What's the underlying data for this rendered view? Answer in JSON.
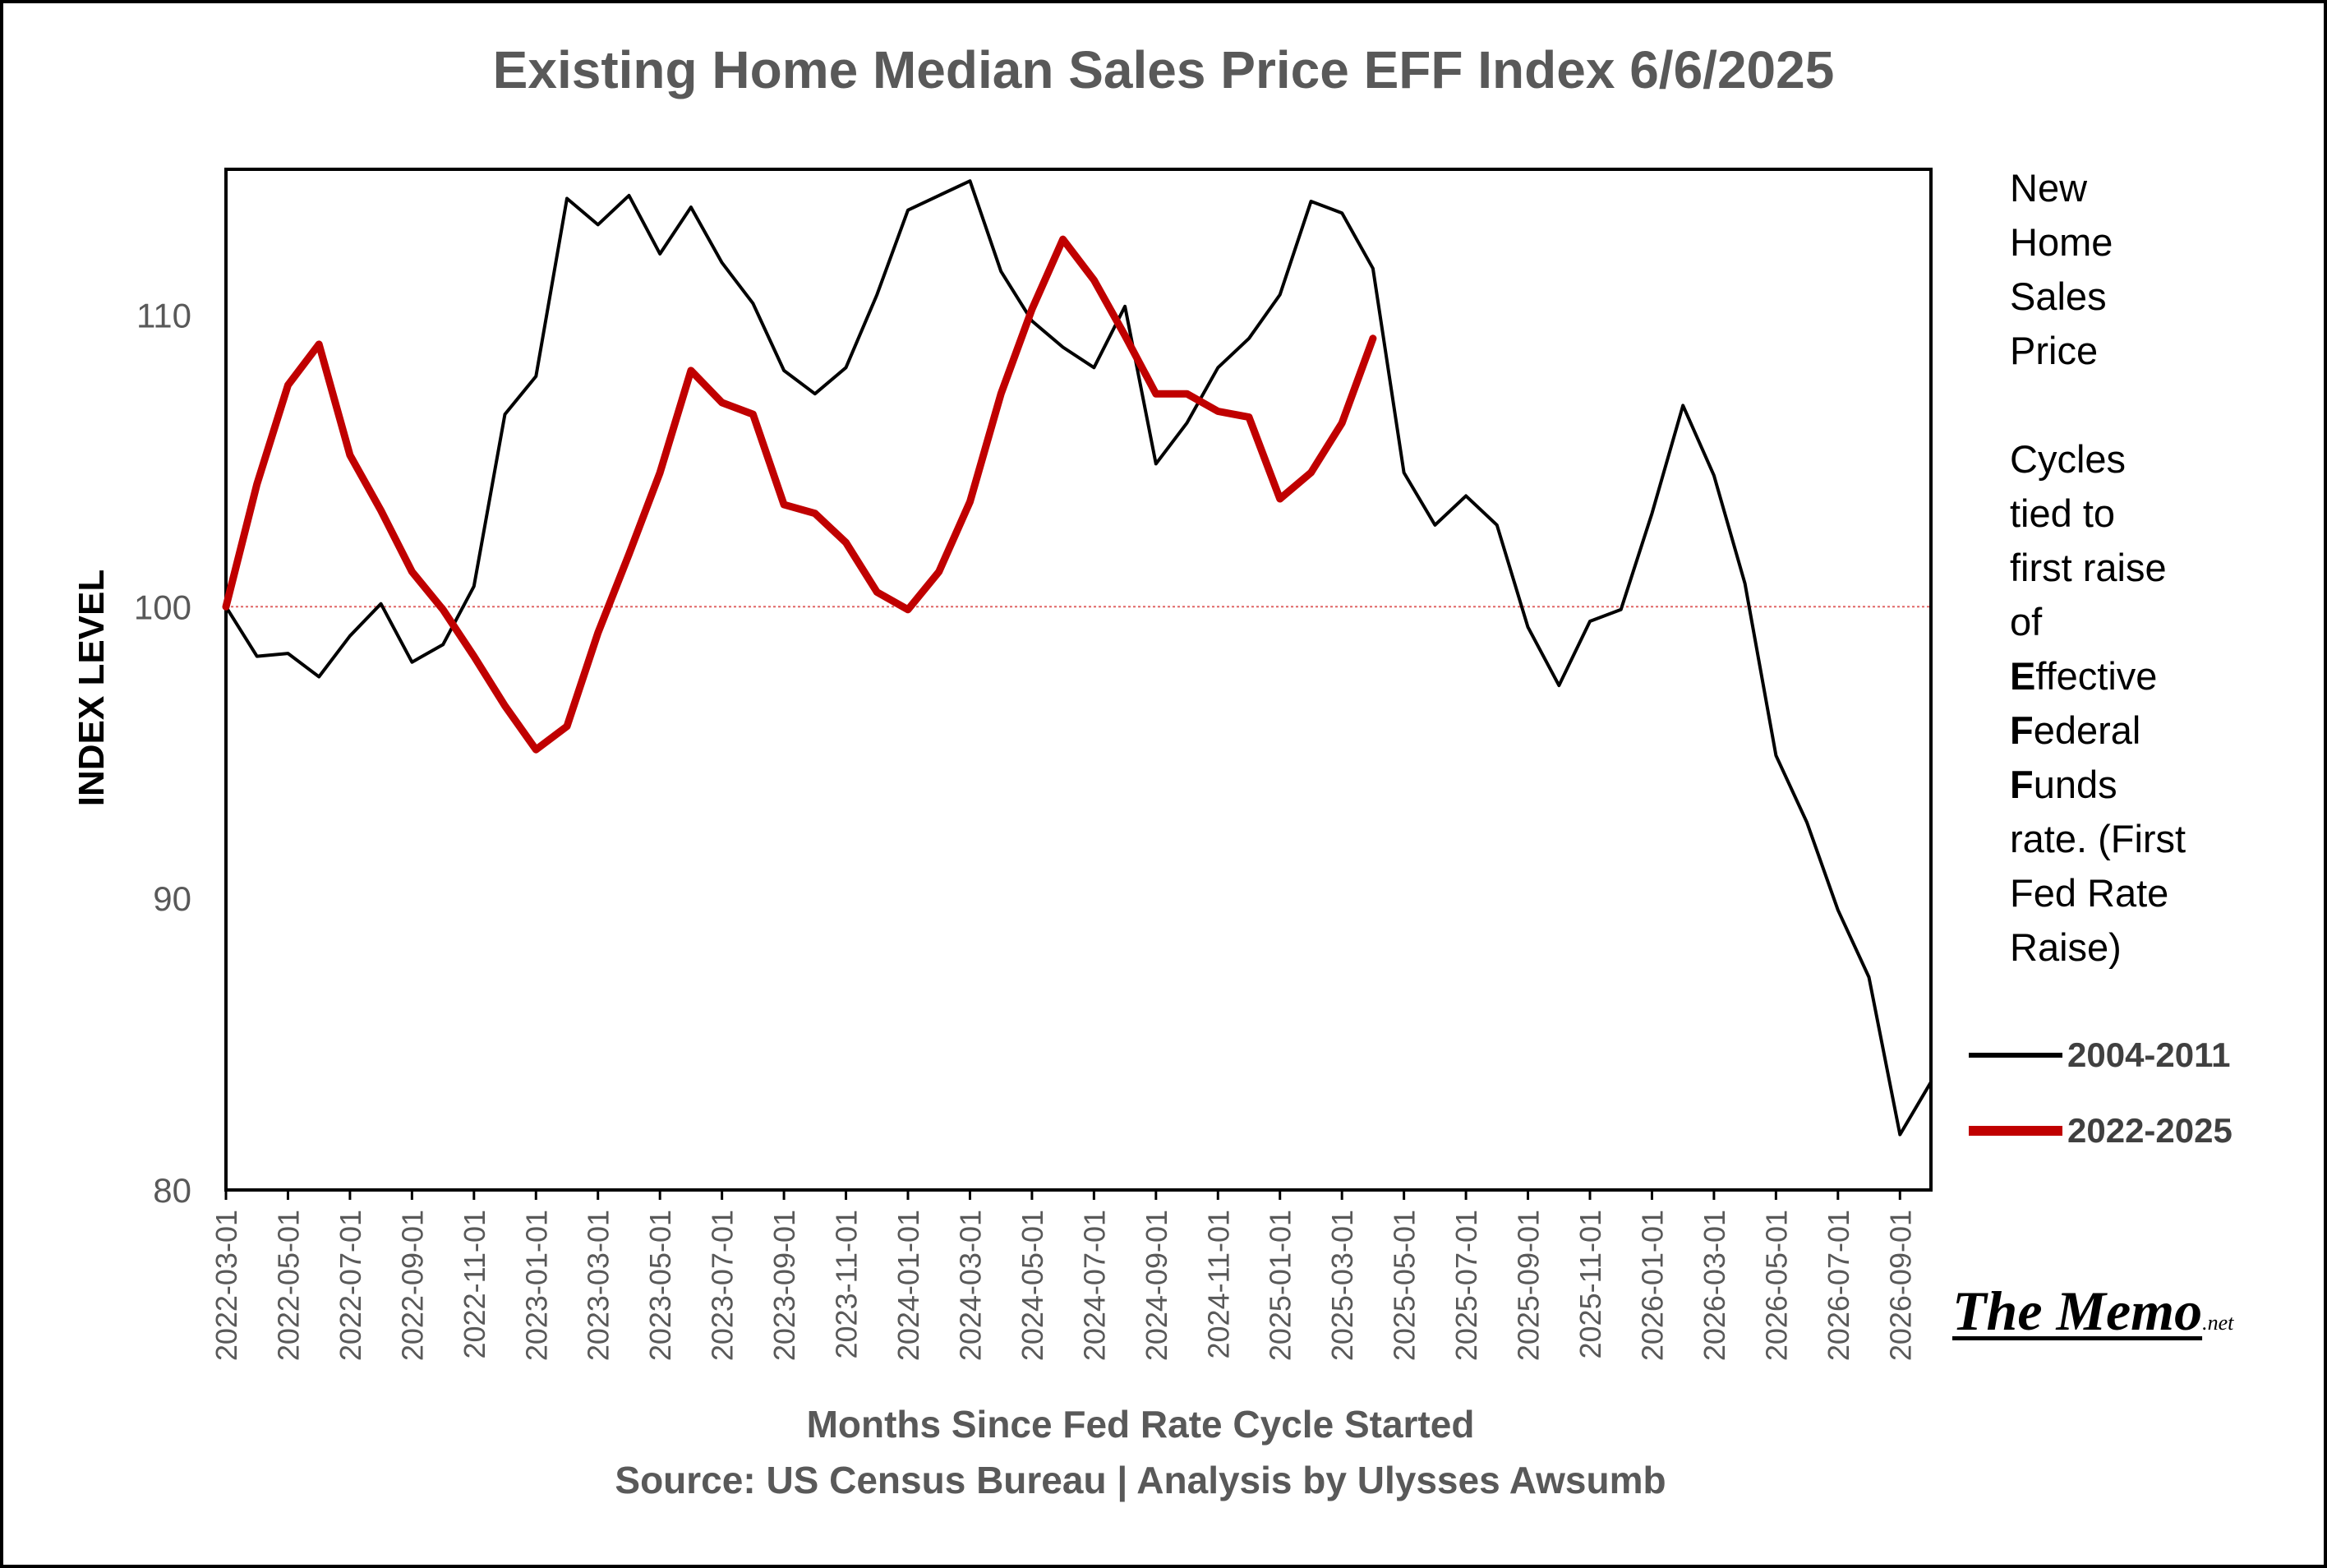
{
  "chart_data": {
    "type": "line",
    "title": "Existing Home Median Sales Price EFF  Index 6/6/2025",
    "xlabel": "Months Since Fed Rate Cycle Started",
    "ylabel": "INDEX LEVEL",
    "source": "Source: US Census Bureau | Analysis by Ulysses Awsumb",
    "ylim": [
      80,
      115
    ],
    "yticks": [
      80,
      90,
      100,
      110
    ],
    "x_tick_labels": [
      "2022-03-01",
      "2022-05-01",
      "2022-07-01",
      "2022-09-01",
      "2022-11-01",
      "2023-01-01",
      "2023-03-01",
      "2023-05-01",
      "2023-07-01",
      "2023-09-01",
      "2023-11-01",
      "2024-01-01",
      "2024-03-01",
      "2024-05-01",
      "2024-07-01",
      "2024-09-01",
      "2024-11-01",
      "2025-01-01",
      "2025-03-01",
      "2025-05-01",
      "2025-07-01",
      "2025-09-01",
      "2025-11-01",
      "2026-01-01",
      "2026-03-01",
      "2026-05-01",
      "2026-07-01",
      "2026-09-01"
    ],
    "reference_line": 100,
    "grid": false,
    "legend_position": "right",
    "series": [
      {
        "name": "2004-2011",
        "color": "#000000",
        "values": [
          100,
          98.3,
          98.4,
          97.6,
          99.0,
          100.1,
          98.1,
          98.7,
          100.7,
          106.6,
          107.9,
          114.0,
          113.1,
          114.1,
          112.1,
          113.7,
          111.8,
          110.4,
          108.1,
          107.3,
          108.2,
          110.7,
          113.6,
          114.1,
          114.6,
          111.5,
          109.8,
          108.9,
          108.2,
          110.3,
          104.9,
          106.3,
          108.2,
          109.2,
          110.7,
          113.9,
          113.5,
          111.6,
          104.6,
          102.8,
          103.8,
          102.8,
          99.3,
          97.3,
          99.5,
          99.9,
          103.2,
          106.9,
          104.5,
          100.8,
          94.9,
          92.6,
          89.6,
          87.3,
          81.9,
          83.7
        ]
      },
      {
        "name": "2022-2025",
        "color": "#C00000",
        "values": [
          100,
          104.2,
          107.6,
          109.0,
          105.2,
          103.3,
          101.2,
          99.9,
          98.3,
          96.6,
          95.1,
          95.9,
          99.1,
          101.8,
          104.6,
          108.1,
          107.0,
          106.6,
          103.5,
          103.2,
          102.2,
          100.5,
          99.9,
          101.2,
          103.6,
          107.3,
          110.2,
          112.6,
          111.2,
          109.3,
          107.3,
          107.3,
          106.7,
          106.5,
          103.7,
          104.6,
          106.3,
          109.2
        ]
      }
    ]
  },
  "side_note": {
    "line1": "New",
    "line2": "Home",
    "line3": "Sales",
    "line4": "Price",
    "line5": "Cycles",
    "line6": "tied to",
    "line7": "first raise",
    "line8": "of",
    "e_bold": "E",
    "e_rest": "ffective",
    "f1_bold": "F",
    "f1_rest": "ederal",
    "f2_bold": "F",
    "f2_rest": "unds",
    "line12": "rate. (First",
    "line13": "Fed Rate",
    "line14": "Raise)"
  },
  "logo": {
    "main": "The Memo",
    "tld": ".net"
  }
}
